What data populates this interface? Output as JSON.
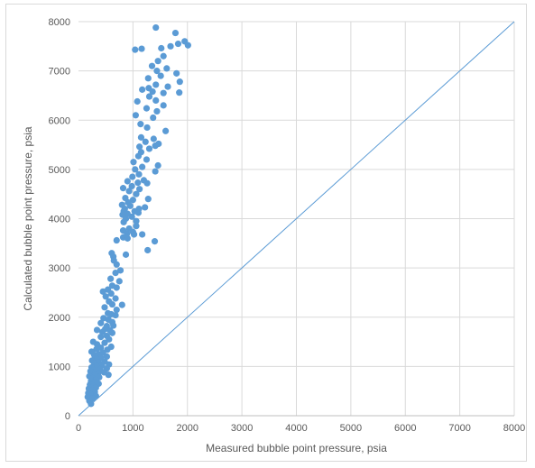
{
  "chart_data": {
    "type": "scatter",
    "title": "",
    "xlabel": "Measured bubble point pressure, psia",
    "ylabel": "Calculated bubble point pressure, psia",
    "xlim": [
      0,
      8000
    ],
    "ylim": [
      0,
      8000
    ],
    "x_ticks": [
      "0",
      "1000",
      "2000",
      "3000",
      "4000",
      "5000",
      "6000",
      "7000",
      "8000"
    ],
    "y_ticks": [
      "0",
      "1000",
      "2000",
      "3000",
      "4000",
      "5000",
      "6000",
      "7000",
      "8000"
    ],
    "grid": true,
    "legend": "none",
    "colors": {
      "points": "#5b9bd5",
      "reference_line": "#5b9bd5",
      "grid": "#d9d9d9"
    },
    "reference_line": {
      "x": [
        0,
        8000
      ],
      "y": [
        0,
        8000
      ]
    },
    "series": [
      {
        "points": [
          [
            1420,
            7880
          ],
          [
            1780,
            7770
          ],
          [
            1950,
            7600
          ],
          [
            2010,
            7520
          ],
          [
            1040,
            7430
          ],
          [
            1160,
            7450
          ],
          [
            1520,
            7460
          ],
          [
            1690,
            7500
          ],
          [
            1830,
            7550
          ],
          [
            1560,
            7300
          ],
          [
            1460,
            7200
          ],
          [
            1350,
            7100
          ],
          [
            1620,
            7050
          ],
          [
            1440,
            7000
          ],
          [
            1800,
            6950
          ],
          [
            1510,
            6900
          ],
          [
            1280,
            6850
          ],
          [
            1860,
            6780
          ],
          [
            1420,
            6720
          ],
          [
            1290,
            6650
          ],
          [
            1640,
            6680
          ],
          [
            1170,
            6620
          ],
          [
            1360,
            6580
          ],
          [
            1560,
            6550
          ],
          [
            1850,
            6560
          ],
          [
            1300,
            6480
          ],
          [
            1420,
            6400
          ],
          [
            1080,
            6380
          ],
          [
            1560,
            6300
          ],
          [
            1250,
            6240
          ],
          [
            1440,
            6180
          ],
          [
            1050,
            6100
          ],
          [
            1370,
            6050
          ],
          [
            1140,
            5920
          ],
          [
            1260,
            5850
          ],
          [
            1600,
            5780
          ],
          [
            1150,
            5650
          ],
          [
            1380,
            5620
          ],
          [
            1230,
            5560
          ],
          [
            1470,
            5520
          ],
          [
            1120,
            5460
          ],
          [
            1300,
            5420
          ],
          [
            1410,
            5480
          ],
          [
            1150,
            5350
          ],
          [
            1100,
            5270
          ],
          [
            1250,
            5200
          ],
          [
            1010,
            5150
          ],
          [
            1460,
            5080
          ],
          [
            1170,
            5050
          ],
          [
            1040,
            5000
          ],
          [
            1410,
            4960
          ],
          [
            1110,
            4900
          ],
          [
            990,
            4850
          ],
          [
            1200,
            4780
          ],
          [
            900,
            4760
          ],
          [
            1090,
            4730
          ],
          [
            1260,
            4720
          ],
          [
            980,
            4660
          ],
          [
            820,
            4620
          ],
          [
            1120,
            4600
          ],
          [
            930,
            4560
          ],
          [
            1060,
            4500
          ],
          [
            860,
            4420
          ],
          [
            1000,
            4380
          ],
          [
            1280,
            4400
          ],
          [
            910,
            4330
          ],
          [
            800,
            4280
          ],
          [
            950,
            4260
          ],
          [
            1110,
            4200
          ],
          [
            1220,
            4230
          ],
          [
            850,
            4200
          ],
          [
            1030,
            4150
          ],
          [
            830,
            4150
          ],
          [
            900,
            4100
          ],
          [
            1100,
            4120
          ],
          [
            810,
            4080
          ],
          [
            980,
            4040
          ],
          [
            870,
            4000
          ],
          [
            1060,
            3950
          ],
          [
            830,
            3930
          ],
          [
            1060,
            3850
          ],
          [
            930,
            3800
          ],
          [
            820,
            3760
          ],
          [
            1000,
            3730
          ],
          [
            890,
            3700
          ],
          [
            1020,
            3680
          ],
          [
            1170,
            3680
          ],
          [
            820,
            3620
          ],
          [
            900,
            3600
          ],
          [
            1400,
            3540
          ],
          [
            700,
            3560
          ],
          [
            1270,
            3360
          ],
          [
            610,
            3300
          ],
          [
            640,
            3230
          ],
          [
            870,
            3270
          ],
          [
            650,
            3150
          ],
          [
            700,
            3070
          ],
          [
            770,
            2950
          ],
          [
            680,
            2900
          ],
          [
            590,
            2780
          ],
          [
            750,
            2730
          ],
          [
            620,
            2640
          ],
          [
            700,
            2600
          ],
          [
            540,
            2560
          ],
          [
            450,
            2520
          ],
          [
            600,
            2480
          ],
          [
            500,
            2420
          ],
          [
            680,
            2380
          ],
          [
            560,
            2320
          ],
          [
            620,
            2260
          ],
          [
            800,
            2250
          ],
          [
            480,
            2200
          ],
          [
            700,
            2150
          ],
          [
            540,
            2080
          ],
          [
            600,
            2060
          ],
          [
            680,
            2040
          ],
          [
            460,
            1980
          ],
          [
            550,
            1950
          ],
          [
            620,
            1900
          ],
          [
            410,
            1880
          ],
          [
            520,
            1820
          ],
          [
            640,
            1830
          ],
          [
            490,
            1760
          ],
          [
            340,
            1740
          ],
          [
            580,
            1730
          ],
          [
            440,
            1700
          ],
          [
            620,
            1680
          ],
          [
            520,
            1620
          ],
          [
            410,
            1600
          ],
          [
            560,
            1550
          ],
          [
            270,
            1500
          ],
          [
            480,
            1480
          ],
          [
            340,
            1450
          ],
          [
            600,
            1400
          ],
          [
            410,
            1380
          ],
          [
            330,
            1350
          ],
          [
            530,
            1340
          ],
          [
            240,
            1300
          ],
          [
            450,
            1280
          ],
          [
            380,
            1250
          ],
          [
            290,
            1230
          ],
          [
            520,
            1200
          ],
          [
            410,
            1180
          ],
          [
            330,
            1150
          ],
          [
            250,
            1120
          ],
          [
            480,
            1100
          ],
          [
            370,
            1080
          ],
          [
            290,
            1060
          ],
          [
            560,
            1040
          ],
          [
            430,
            1020
          ],
          [
            330,
            1000
          ],
          [
            240,
            980
          ],
          [
            520,
            960
          ],
          [
            400,
            940
          ],
          [
            310,
            920
          ],
          [
            220,
            900
          ],
          [
            470,
            880
          ],
          [
            360,
            860
          ],
          [
            270,
            850
          ],
          [
            550,
            830
          ],
          [
            300,
            820
          ],
          [
            200,
            800
          ],
          [
            380,
            780
          ],
          [
            260,
            760
          ],
          [
            320,
            730
          ],
          [
            230,
            700
          ],
          [
            290,
            680
          ],
          [
            370,
            650
          ],
          [
            210,
            630
          ],
          [
            270,
            600
          ],
          [
            320,
            570
          ],
          [
            190,
            550
          ],
          [
            250,
            520
          ],
          [
            300,
            480
          ],
          [
            180,
            460
          ],
          [
            230,
            430
          ],
          [
            320,
            400
          ],
          [
            170,
            380
          ],
          [
            260,
            350
          ],
          [
            200,
            300
          ],
          [
            230,
            240
          ]
        ]
      }
    ]
  }
}
